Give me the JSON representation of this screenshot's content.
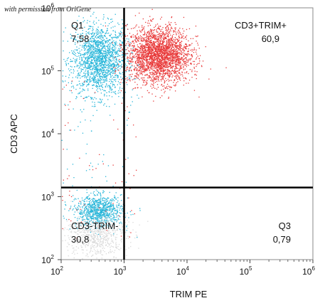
{
  "credit": "with permission from OriGene",
  "chart_data": {
    "type": "scatter",
    "xlabel": "TRIM PE",
    "ylabel": "CD3 APC",
    "xscale": "log",
    "yscale": "log",
    "xlim": [
      100,
      1000000
    ],
    "ylim": [
      100,
      1000000
    ],
    "x_ticks": [
      {
        "base": "10",
        "exp": "2",
        "value": 100
      },
      {
        "base": "10",
        "exp": "3",
        "value": 1000
      },
      {
        "base": "10",
        "exp": "4",
        "value": 10000
      },
      {
        "base": "10",
        "exp": "5",
        "value": 100000
      },
      {
        "base": "10",
        "exp": "6",
        "value": 1000000
      }
    ],
    "y_ticks": [
      {
        "base": "10",
        "exp": "2",
        "value": 100
      },
      {
        "base": "10",
        "exp": "3",
        "value": 1000
      },
      {
        "base": "10",
        "exp": "4",
        "value": 10000
      },
      {
        "base": "10",
        "exp": "5",
        "value": 100000
      },
      {
        "base": "10",
        "exp": "6",
        "value": 1000000
      }
    ],
    "gates": {
      "x": 1000,
      "y": 1400
    },
    "quadrants": [
      {
        "name": "Q1",
        "value": "7,58",
        "position": "top-left"
      },
      {
        "name": "CD3+TRIM+",
        "value": "60,9",
        "position": "top-right"
      },
      {
        "name": "CD3-TRIM-",
        "value": "30,8",
        "position": "bottom-left"
      },
      {
        "name": "Q3",
        "value": "0,79",
        "position": "bottom-right"
      }
    ],
    "populations": [
      {
        "color": "#29b6d9",
        "center": [
          400,
          150000
        ],
        "spread_decades": [
          0.22,
          0.28
        ]
      },
      {
        "color": "#e83a3a",
        "center": [
          3500,
          180000
        ],
        "spread_decades": [
          0.25,
          0.22
        ]
      },
      {
        "color": "#29b6d9",
        "center": [
          400,
          600
        ],
        "spread_decades": [
          0.18,
          0.12
        ]
      },
      {
        "color": "#d9d9d9",
        "center": [
          350,
          250
        ],
        "spread_decades": [
          0.25,
          0.18
        ]
      }
    ],
    "grid": false
  }
}
